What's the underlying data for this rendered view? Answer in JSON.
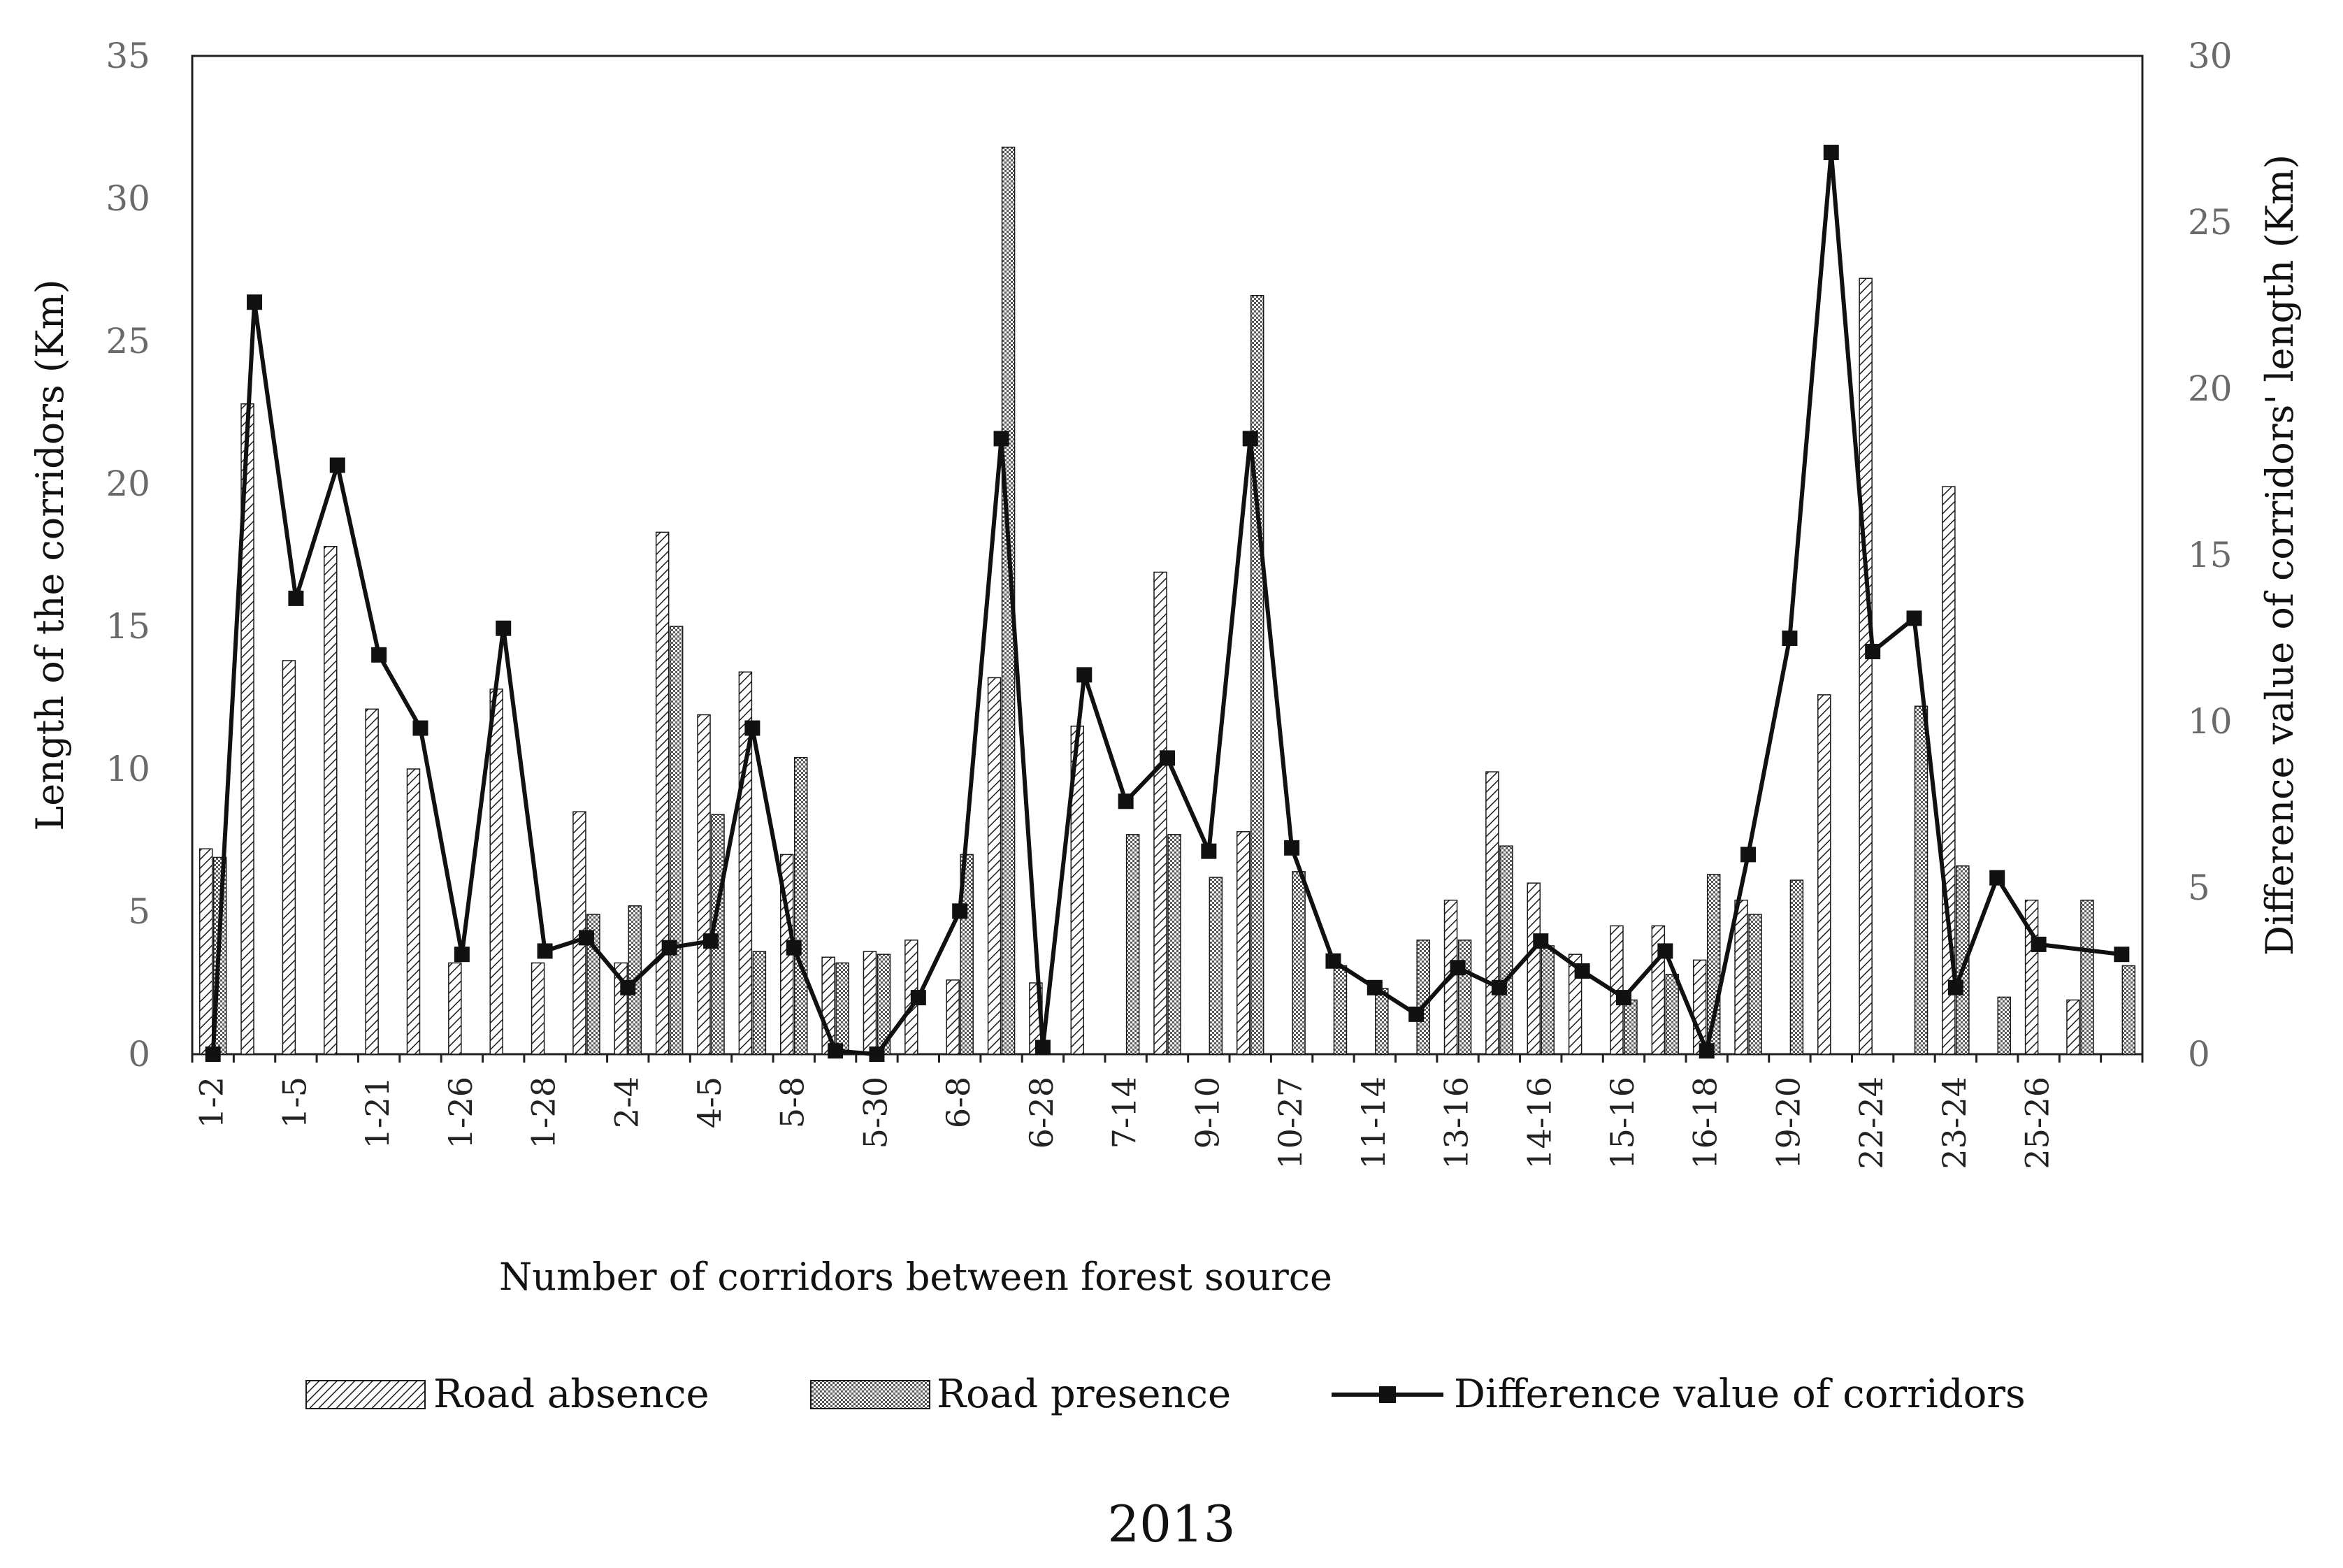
{
  "chart_data": {
    "type": "bar+line",
    "caption": "2013",
    "xlabel": "Number of corridors between forest source",
    "ylabel_left": "Length of the corridors (Km)",
    "ylabel_right": "Difference value of corridors' length (Km)",
    "ylim_left": [
      0,
      35
    ],
    "yticks_left": [
      "0",
      "5",
      "10",
      "15",
      "20",
      "25",
      "30",
      "35"
    ],
    "ylim_right": [
      0,
      30
    ],
    "yticks_right": [
      "0",
      "5",
      "10",
      "15",
      "20",
      "25",
      "30"
    ],
    "category_labels": [
      "1-2",
      "1-5",
      "1-21",
      "1-26",
      "1-28",
      "2-4",
      "4-5",
      "5-8",
      "5-30",
      "6-8",
      "6-28",
      "7-14",
      "9-10",
      "10-27",
      "11-14",
      "13-16",
      "14-16",
      "15-16",
      "16-18",
      "19-20",
      "22-24",
      "23-24",
      "25-26"
    ],
    "legend": {
      "road_absence": "Road absence",
      "road_presence": "Road presence",
      "difference": "Difference value of corridors"
    },
    "series": [
      {
        "name": "Road absence",
        "axis": "left",
        "values": [
          7.2,
          22.8,
          13.8,
          17.8,
          12.1,
          10.0,
          3.2,
          12.8,
          3.2,
          8.5,
          3.2,
          18.3,
          11.9,
          13.4,
          7.0,
          3.4,
          3.6,
          4.0,
          2.6,
          13.2,
          2.5,
          11.5,
          0,
          16.9,
          0,
          7.8,
          0,
          0,
          0,
          0,
          5.4,
          9.9,
          6.0,
          3.5,
          4.5,
          4.5,
          3.3,
          5.4,
          0,
          12.6,
          27.2,
          0,
          19.9,
          0,
          5.4,
          1.9,
          0
        ]
      },
      {
        "name": "Road presence",
        "axis": "left",
        "values": [
          6.9,
          0,
          0,
          0,
          0,
          0,
          0,
          0,
          0,
          4.9,
          5.2,
          15.0,
          8.4,
          3.6,
          10.4,
          3.2,
          3.5,
          0,
          7.0,
          31.8,
          0,
          0,
          7.7,
          7.7,
          6.2,
          26.6,
          6.4,
          3.1,
          2.3,
          4.0,
          4.0,
          7.3,
          3.8,
          0,
          1.9,
          2.8,
          6.3,
          4.9,
          6.1,
          0,
          0,
          12.2,
          6.6,
          2.0,
          0,
          5.4,
          3.1
        ]
      },
      {
        "name": "Difference value of corridors",
        "axis": "right",
        "values": [
          0,
          22.6,
          13.7,
          17.7,
          12.0,
          9.8,
          3.0,
          12.8,
          3.1,
          3.5,
          2.0,
          3.2,
          3.4,
          9.8,
          3.2,
          0.1,
          0.0,
          1.7,
          4.3,
          18.5,
          0.2,
          11.4,
          7.6,
          8.9,
          6.1,
          18.5,
          6.2,
          2.8,
          2.0,
          1.2,
          2.6,
          2.0,
          3.4,
          2.5,
          1.7,
          3.1,
          0.1,
          6.0,
          12.5,
          27.1,
          12.1,
          13.1,
          2.0,
          5.3,
          3.3,
          3.0
        ]
      }
    ],
    "line_category_indices": [
      0,
      1,
      2,
      3,
      4,
      5,
      6,
      7,
      8,
      9,
      10,
      11,
      12,
      13,
      14,
      15,
      16,
      17,
      18,
      19,
      20,
      21,
      22,
      23,
      24,
      25,
      26,
      27,
      28,
      29,
      30,
      31,
      32,
      33,
      34,
      35,
      36,
      37,
      38,
      39,
      40,
      41,
      42,
      43,
      44,
      46
    ],
    "grid": false,
    "legend_position": "bottom"
  }
}
